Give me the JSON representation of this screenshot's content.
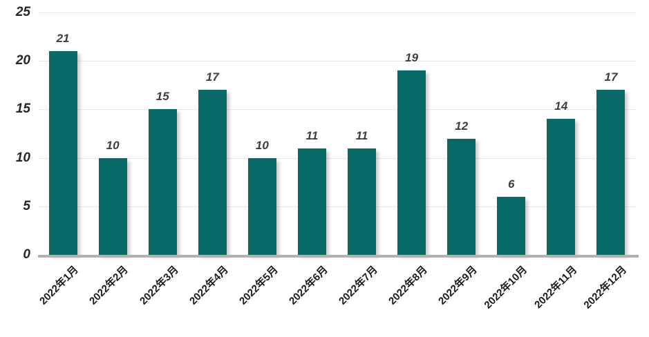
{
  "chart_data": {
    "type": "bar",
    "categories": [
      "2022年1月",
      "2022年2月",
      "2022年3月",
      "2022年4月",
      "2022年5月",
      "2022年6月",
      "2022年7月",
      "2022年8月",
      "2022年9月",
      "2022年10月",
      "2022年11月",
      "2022年12月"
    ],
    "values": [
      21,
      10,
      15,
      17,
      10,
      11,
      11,
      19,
      12,
      6,
      14,
      17
    ],
    "title": "",
    "xlabel": "",
    "ylabel": "",
    "ylim": [
      0,
      25
    ],
    "yticks": [
      0,
      5,
      10,
      15,
      20,
      25
    ],
    "grid": true,
    "legend": "none",
    "colors": {
      "bar": "#076A66",
      "value_label": "#3d3d3d",
      "axis_tick_label": "#262626",
      "x_tick_label": "#1a1a1a",
      "gridline": "#e8e8e8",
      "baseline": "#b0b0b0"
    }
  }
}
